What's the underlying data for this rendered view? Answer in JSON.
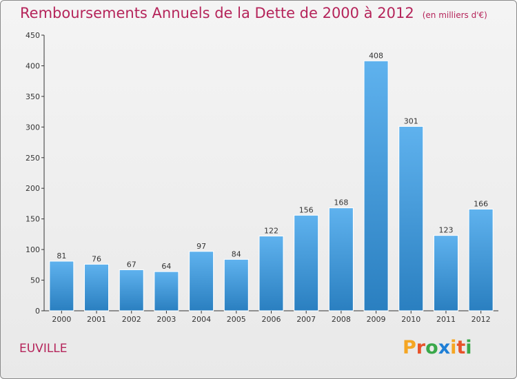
{
  "title": "Remboursements Annuels de la Dette de 2000 à 2012",
  "subtitle": "(en milliers d'€)",
  "commune": "EUVILLE",
  "logo_letters": [
    "P",
    "r",
    "o",
    "x",
    "i",
    "t",
    "i"
  ],
  "colors": {
    "title": "#b5245a",
    "bar_top": "#5fb2ee",
    "bar_bottom": "#2a7fc0",
    "axis": "#333333",
    "grid": "#d0d0d0",
    "logo": [
      "#f5a623",
      "#e8532a",
      "#3aa84a",
      "#1f7fd6",
      "#f5a623",
      "#e8532a",
      "#3aa84a"
    ]
  },
  "chart_data": {
    "type": "bar",
    "categories": [
      "2000",
      "2001",
      "2002",
      "2003",
      "2004",
      "2005",
      "2006",
      "2007",
      "2008",
      "2009",
      "2010",
      "2011",
      "2012"
    ],
    "values": [
      81,
      76,
      67,
      64,
      97,
      84,
      122,
      156,
      168,
      408,
      301,
      123,
      166
    ],
    "yticks": [
      0,
      50,
      100,
      150,
      200,
      250,
      300,
      350,
      400,
      450
    ],
    "ylim": [
      0,
      450
    ],
    "grid": false,
    "legend": "none",
    "data_labels": true
  }
}
